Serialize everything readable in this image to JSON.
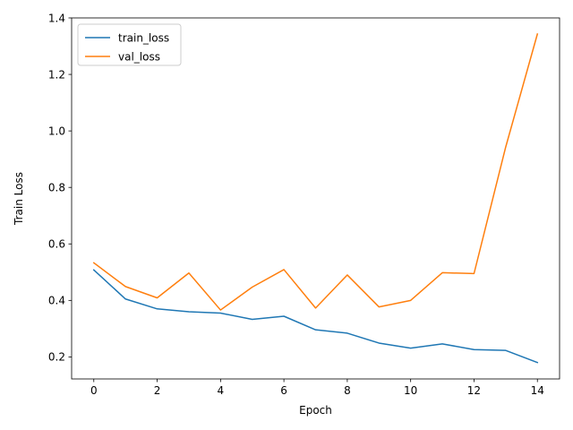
{
  "chart_data": {
    "type": "line",
    "title": "",
    "xlabel": "Epoch",
    "ylabel": "Train Loss",
    "x": [
      0,
      1,
      2,
      3,
      4,
      5,
      6,
      7,
      8,
      9,
      10,
      11,
      12,
      13,
      14
    ],
    "xlim": [
      -0.7,
      14.7
    ],
    "ylim": [
      0.122,
      1.4
    ],
    "xticks": [
      0,
      2,
      4,
      6,
      8,
      10,
      12,
      14
    ],
    "yticks": [
      0.2,
      0.4,
      0.6,
      0.8,
      1.0,
      1.2,
      1.4
    ],
    "xtick_labels": [
      "0",
      "2",
      "4",
      "6",
      "8",
      "10",
      "12",
      "14"
    ],
    "ytick_labels": [
      "0.2",
      "0.4",
      "0.6",
      "0.8",
      "1.0",
      "1.2",
      "1.4"
    ],
    "grid": false,
    "legend_position": "top-left",
    "series": [
      {
        "name": "train_loss",
        "color": "#1f77b4",
        "values": [
          0.508,
          0.405,
          0.37,
          0.36,
          0.355,
          0.333,
          0.344,
          0.296,
          0.284,
          0.249,
          0.231,
          0.246,
          0.226,
          0.223,
          0.18
        ]
      },
      {
        "name": "val_loss",
        "color": "#ff7f0e",
        "values": [
          0.533,
          0.449,
          0.409,
          0.497,
          0.366,
          0.447,
          0.509,
          0.373,
          0.49,
          0.377,
          0.4,
          0.498,
          0.495,
          0.943,
          1.343
        ]
      }
    ]
  }
}
